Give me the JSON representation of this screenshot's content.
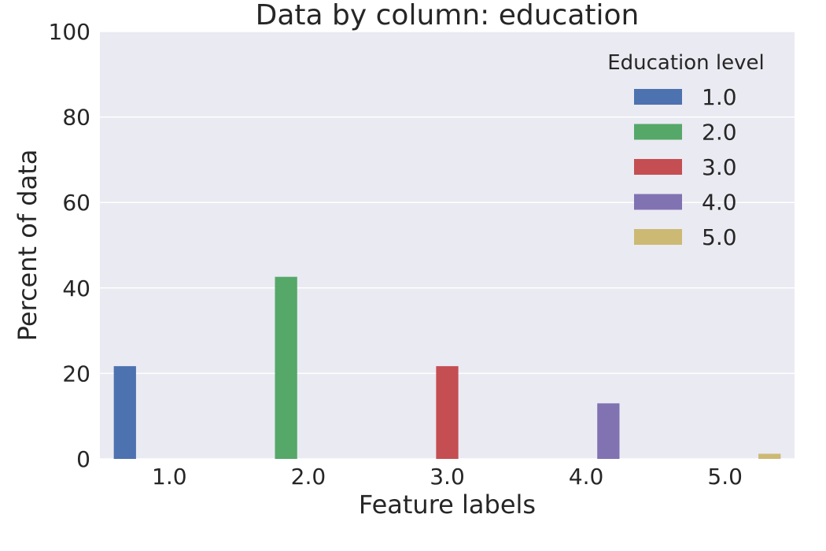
{
  "chart_data": {
    "type": "bar",
    "title": "Data by column: education",
    "xlabel": "Feature labels",
    "ylabel": "Percent of data",
    "ylim": [
      0,
      100
    ],
    "yticks": [
      "0",
      "20",
      "40",
      "60",
      "80",
      "100"
    ],
    "categories": [
      "1.0",
      "2.0",
      "3.0",
      "4.0",
      "5.0"
    ],
    "legend_title": "Education level",
    "legend_position": "top-right",
    "grid": true,
    "series": [
      {
        "name": "1.0",
        "color": "#4c72b0",
        "values": [
          21.7,
          0,
          0,
          0,
          0
        ]
      },
      {
        "name": "2.0",
        "color": "#55a868",
        "values": [
          0,
          42.6,
          0,
          0,
          0
        ]
      },
      {
        "name": "3.0",
        "color": "#c44e52",
        "values": [
          0,
          0,
          21.7,
          0,
          0
        ]
      },
      {
        "name": "4.0",
        "color": "#8172b2",
        "values": [
          0,
          0,
          0,
          13.0,
          0
        ]
      },
      {
        "name": "5.0",
        "color": "#ccb974",
        "values": [
          0,
          0,
          0,
          0,
          1.2
        ]
      }
    ],
    "background_color": "#eaeaf2",
    "grid_color": "#ffffff"
  }
}
